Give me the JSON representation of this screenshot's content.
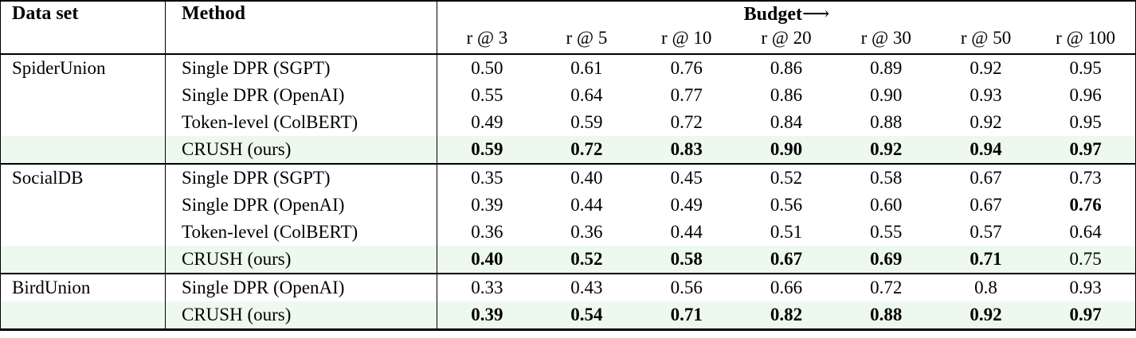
{
  "table": {
    "headers": {
      "dataset": "Data set",
      "method": "Method",
      "budget": "Budget",
      "arrow": "⟶"
    },
    "budget_cols": [
      "r @ 3",
      "r @ 5",
      "r @ 10",
      "r @ 20",
      "r @ 30",
      "r @ 50",
      "r @ 100"
    ],
    "groups": [
      {
        "dataset": "SpiderUnion",
        "rows": [
          {
            "method": "Single DPR (SGPT)",
            "values": [
              "0.50",
              "0.61",
              "0.76",
              "0.86",
              "0.89",
              "0.92",
              "0.95"
            ],
            "bold": [
              0,
              0,
              0,
              0,
              0,
              0,
              0
            ],
            "highlight": false
          },
          {
            "method": "Single DPR (OpenAI)",
            "values": [
              "0.55",
              "0.64",
              "0.77",
              "0.86",
              "0.90",
              "0.93",
              "0.96"
            ],
            "bold": [
              0,
              0,
              0,
              0,
              0,
              0,
              0
            ],
            "highlight": false
          },
          {
            "method": "Token-level (ColBERT)",
            "values": [
              "0.49",
              "0.59",
              "0.72",
              "0.84",
              "0.88",
              "0.92",
              "0.95"
            ],
            "bold": [
              0,
              0,
              0,
              0,
              0,
              0,
              0
            ],
            "highlight": false
          },
          {
            "method": "CRUSH (ours)",
            "values": [
              "0.59",
              "0.72",
              "0.83",
              "0.90",
              "0.92",
              "0.94",
              "0.97"
            ],
            "bold": [
              1,
              1,
              1,
              1,
              1,
              1,
              1
            ],
            "highlight": true
          }
        ]
      },
      {
        "dataset": "SocialDB",
        "rows": [
          {
            "method": "Single DPR (SGPT)",
            "values": [
              "0.35",
              "0.40",
              "0.45",
              "0.52",
              "0.58",
              "0.67",
              "0.73"
            ],
            "bold": [
              0,
              0,
              0,
              0,
              0,
              0,
              0
            ],
            "highlight": false
          },
          {
            "method": "Single DPR (OpenAI)",
            "values": [
              "0.39",
              "0.44",
              "0.49",
              "0.56",
              "0.60",
              "0.67",
              "0.76"
            ],
            "bold": [
              0,
              0,
              0,
              0,
              0,
              0,
              1
            ],
            "highlight": false
          },
          {
            "method": "Token-level (ColBERT)",
            "values": [
              "0.36",
              "0.36",
              "0.44",
              "0.51",
              "0.55",
              "0.57",
              "0.64"
            ],
            "bold": [
              0,
              0,
              0,
              0,
              0,
              0,
              0
            ],
            "highlight": false
          },
          {
            "method": "CRUSH (ours)",
            "values": [
              "0.40",
              "0.52",
              "0.58",
              "0.67",
              "0.69",
              "0.71",
              "0.75"
            ],
            "bold": [
              1,
              1,
              1,
              1,
              1,
              1,
              0
            ],
            "highlight": true
          }
        ]
      },
      {
        "dataset": "BirdUnion",
        "rows": [
          {
            "method": "Single DPR (OpenAI)",
            "values": [
              "0.33",
              "0.43",
              "0.56",
              "0.66",
              "0.72",
              "0.8",
              "0.93"
            ],
            "bold": [
              0,
              0,
              0,
              0,
              0,
              0,
              0
            ],
            "highlight": false
          },
          {
            "method": "CRUSH (ours)",
            "values": [
              "0.39",
              "0.54",
              "0.71",
              "0.82",
              "0.88",
              "0.92",
              "0.97"
            ],
            "bold": [
              1,
              1,
              1,
              1,
              1,
              1,
              1
            ],
            "highlight": true
          }
        ]
      }
    ],
    "colors": {
      "highlight_row": "#eef9ee",
      "border": "#000000",
      "text": "#000000"
    }
  }
}
